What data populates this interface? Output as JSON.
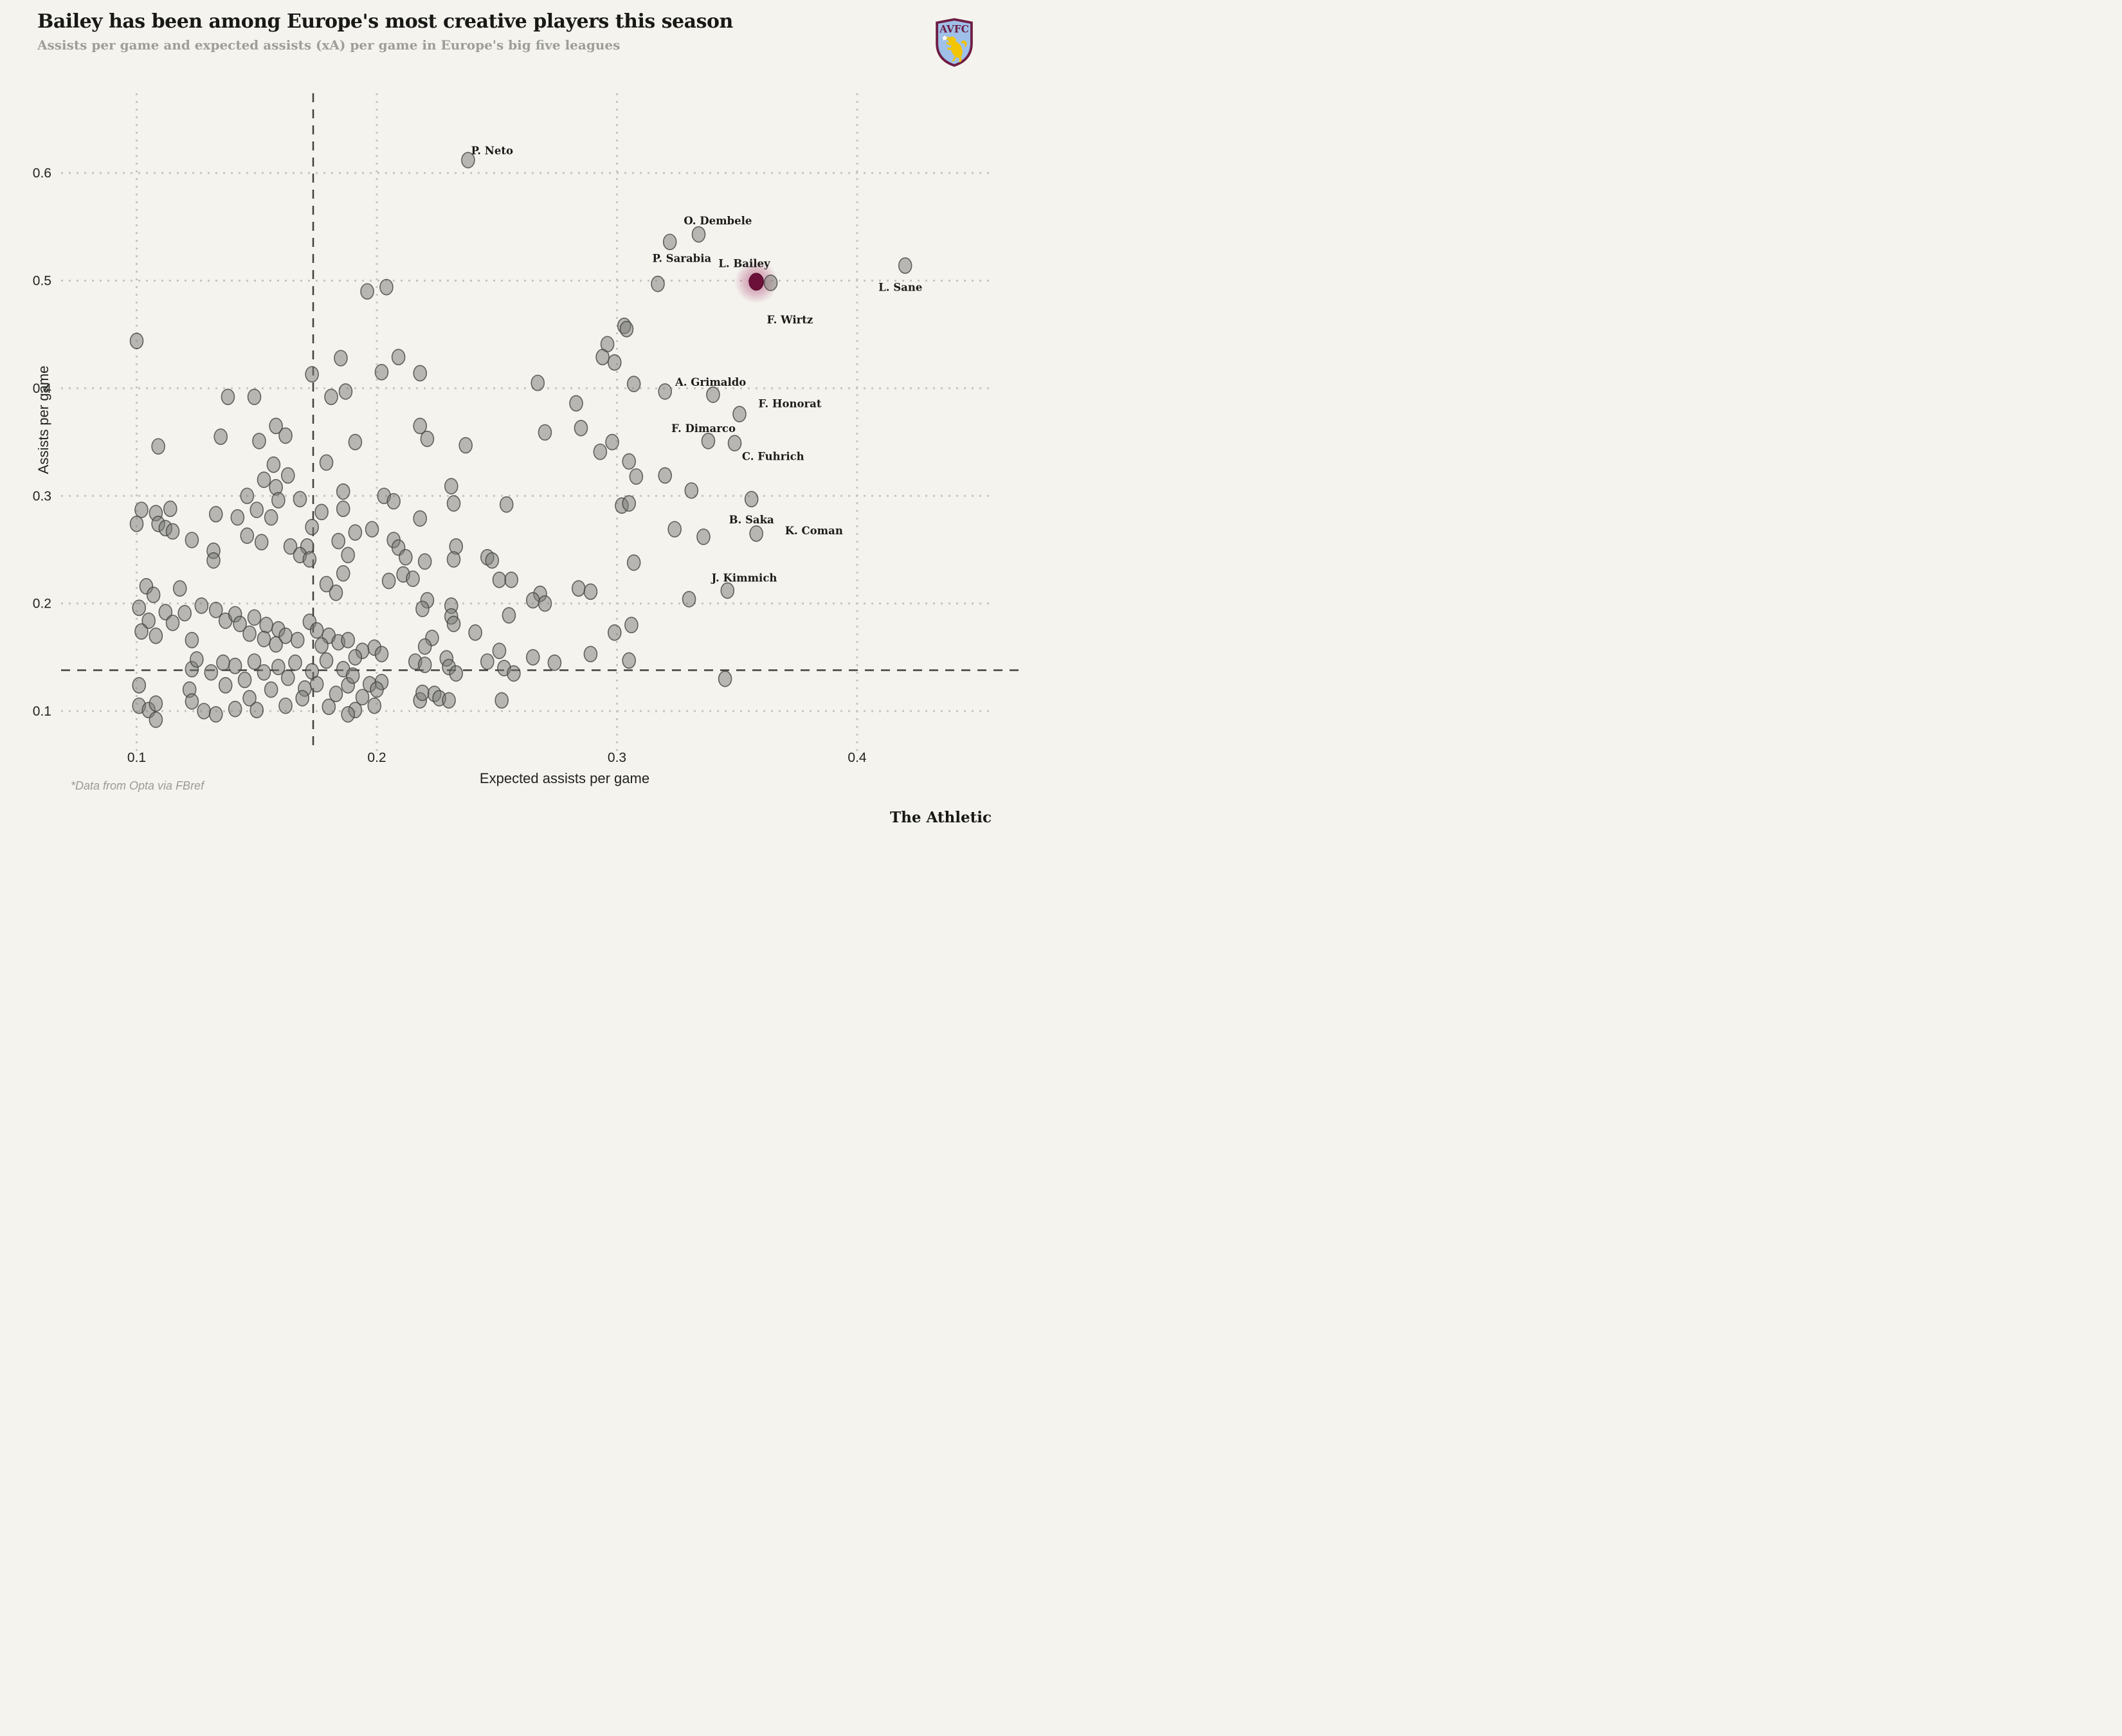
{
  "header": {
    "title": "Bailey has been among Europe's most creative players this season",
    "subtitle": "Assists per game and expected assists (xA) per game in Europe's big five leagues",
    "badge_text": "AVFC"
  },
  "footer": {
    "footnote": "*Data from Opta via FBref",
    "brand": "The Athletic"
  },
  "colors": {
    "background": "#f4f3ee",
    "gridline": "#c6c6c0",
    "reference_line": "#3f3f3d",
    "dot_fill": "rgba(122,122,117,0.5)",
    "dot_stroke": "rgba(66,66,62,0.8)",
    "highlight_core": "#6d1039",
    "highlight_halo": "#a0295f",
    "badge_claret": "#6e1c42",
    "badge_blue": "#9fc0e8",
    "badge_yellow": "#f2c500"
  },
  "chart_data": {
    "type": "scatter",
    "title": "Bailey has been among Europe's most creative players this season",
    "xlabel": "Expected assists per game",
    "ylabel": "Assists per game",
    "x_ticks": [
      0.1,
      0.2,
      0.3,
      0.4
    ],
    "y_ticks": [
      0.1,
      0.2,
      0.3,
      0.4,
      0.5,
      0.6
    ],
    "xlim": [
      0.07,
      0.47
    ],
    "ylim": [
      0.06,
      0.675
    ],
    "grid": "dotted",
    "reference_lines": {
      "x_dashed": 0.1735,
      "y_dashed": 0.138
    },
    "labeled_points": [
      {
        "label": "P. Neto",
        "x": 0.238,
        "y": 0.612,
        "lx": 0.248,
        "ly": 0.621,
        "highlight": false
      },
      {
        "label": "O. Dembele",
        "x": 0.334,
        "y": 0.543,
        "lx": 0.342,
        "ly": 0.556,
        "highlight": false
      },
      {
        "label": "P. Sarabia",
        "x": 0.317,
        "y": 0.497,
        "lx": 0.327,
        "ly": 0.521,
        "highlight": false
      },
      {
        "label": "L. Bailey",
        "x": 0.358,
        "y": 0.499,
        "lx": 0.353,
        "ly": 0.516,
        "highlight": true
      },
      {
        "label": "F. Wirtz",
        "x": 0.364,
        "y": 0.498,
        "lx": 0.372,
        "ly": 0.464,
        "highlight": false
      },
      {
        "label": "L. Sane",
        "x": 0.42,
        "y": 0.514,
        "lx": 0.418,
        "ly": 0.494,
        "highlight": false
      },
      {
        "label": "A. Grimaldo",
        "x": 0.34,
        "y": 0.394,
        "lx": 0.339,
        "ly": 0.406,
        "highlight": false
      },
      {
        "label": "F. Honorat",
        "x": 0.351,
        "y": 0.376,
        "lx": 0.372,
        "ly": 0.386,
        "highlight": false
      },
      {
        "label": "F. Dimarco",
        "x": 0.338,
        "y": 0.351,
        "lx": 0.336,
        "ly": 0.363,
        "highlight": false
      },
      {
        "label": "C. Fuhrich",
        "x": 0.349,
        "y": 0.349,
        "lx": 0.365,
        "ly": 0.337,
        "highlight": false
      },
      {
        "label": "B. Saka",
        "x": 0.356,
        "y": 0.297,
        "lx": 0.356,
        "ly": 0.278,
        "highlight": false
      },
      {
        "label": "K. Coman",
        "x": 0.358,
        "y": 0.265,
        "lx": 0.382,
        "ly": 0.268,
        "highlight": false
      },
      {
        "label": "J. Kimmich",
        "x": 0.346,
        "y": 0.212,
        "lx": 0.353,
        "ly": 0.224,
        "highlight": false
      }
    ],
    "points": [
      [
        0.196,
        0.49
      ],
      [
        0.204,
        0.494
      ],
      [
        0.1,
        0.444
      ],
      [
        0.303,
        0.458
      ],
      [
        0.304,
        0.455
      ],
      [
        0.322,
        0.536
      ],
      [
        0.185,
        0.428
      ],
      [
        0.173,
        0.413
      ],
      [
        0.138,
        0.392
      ],
      [
        0.149,
        0.392
      ],
      [
        0.181,
        0.392
      ],
      [
        0.187,
        0.397
      ],
      [
        0.158,
        0.365
      ],
      [
        0.162,
        0.356
      ],
      [
        0.135,
        0.355
      ],
      [
        0.151,
        0.351
      ],
      [
        0.109,
        0.346
      ],
      [
        0.157,
        0.329
      ],
      [
        0.163,
        0.319
      ],
      [
        0.153,
        0.315
      ],
      [
        0.158,
        0.308
      ],
      [
        0.146,
        0.3
      ],
      [
        0.159,
        0.296
      ],
      [
        0.168,
        0.297
      ],
      [
        0.186,
        0.304
      ],
      [
        0.179,
        0.331
      ],
      [
        0.209,
        0.429
      ],
      [
        0.202,
        0.415
      ],
      [
        0.218,
        0.414
      ],
      [
        0.267,
        0.405
      ],
      [
        0.296,
        0.441
      ],
      [
        0.294,
        0.429
      ],
      [
        0.299,
        0.424
      ],
      [
        0.307,
        0.404
      ],
      [
        0.32,
        0.397
      ],
      [
        0.283,
        0.386
      ],
      [
        0.285,
        0.363
      ],
      [
        0.218,
        0.365
      ],
      [
        0.221,
        0.353
      ],
      [
        0.237,
        0.347
      ],
      [
        0.27,
        0.359
      ],
      [
        0.191,
        0.35
      ],
      [
        0.298,
        0.35
      ],
      [
        0.293,
        0.341
      ],
      [
        0.305,
        0.332
      ],
      [
        0.308,
        0.318
      ],
      [
        0.32,
        0.319
      ],
      [
        0.231,
        0.309
      ],
      [
        0.203,
        0.3
      ],
      [
        0.207,
        0.295
      ],
      [
        0.232,
        0.293
      ],
      [
        0.254,
        0.292
      ],
      [
        0.331,
        0.305
      ],
      [
        0.102,
        0.287
      ],
      [
        0.108,
        0.284
      ],
      [
        0.114,
        0.288
      ],
      [
        0.1,
        0.274
      ],
      [
        0.109,
        0.274
      ],
      [
        0.112,
        0.27
      ],
      [
        0.115,
        0.267
      ],
      [
        0.123,
        0.259
      ],
      [
        0.133,
        0.283
      ],
      [
        0.142,
        0.28
      ],
      [
        0.15,
        0.287
      ],
      [
        0.156,
        0.28
      ],
      [
        0.146,
        0.263
      ],
      [
        0.152,
        0.257
      ],
      [
        0.132,
        0.249
      ],
      [
        0.132,
        0.24
      ],
      [
        0.164,
        0.253
      ],
      [
        0.171,
        0.253
      ],
      [
        0.168,
        0.245
      ],
      [
        0.172,
        0.241
      ],
      [
        0.184,
        0.258
      ],
      [
        0.173,
        0.271
      ],
      [
        0.177,
        0.285
      ],
      [
        0.186,
        0.288
      ],
      [
        0.118,
        0.214
      ],
      [
        0.104,
        0.216
      ],
      [
        0.107,
        0.208
      ],
      [
        0.127,
        0.198
      ],
      [
        0.133,
        0.194
      ],
      [
        0.137,
        0.184
      ],
      [
        0.141,
        0.19
      ],
      [
        0.143,
        0.181
      ],
      [
        0.149,
        0.187
      ],
      [
        0.154,
        0.18
      ],
      [
        0.159,
        0.176
      ],
      [
        0.147,
        0.172
      ],
      [
        0.153,
        0.167
      ],
      [
        0.158,
        0.162
      ],
      [
        0.162,
        0.17
      ],
      [
        0.167,
        0.166
      ],
      [
        0.12,
        0.191
      ],
      [
        0.112,
        0.192
      ],
      [
        0.115,
        0.182
      ],
      [
        0.105,
        0.184
      ],
      [
        0.102,
        0.174
      ],
      [
        0.108,
        0.17
      ],
      [
        0.172,
        0.183
      ],
      [
        0.175,
        0.175
      ],
      [
        0.18,
        0.17
      ],
      [
        0.184,
        0.164
      ],
      [
        0.177,
        0.161
      ],
      [
        0.183,
        0.21
      ],
      [
        0.179,
        0.218
      ],
      [
        0.186,
        0.228
      ],
      [
        0.101,
        0.196
      ],
      [
        0.123,
        0.166
      ],
      [
        0.302,
        0.291
      ],
      [
        0.218,
        0.279
      ],
      [
        0.198,
        0.269
      ],
      [
        0.191,
        0.266
      ],
      [
        0.188,
        0.245
      ],
      [
        0.207,
        0.259
      ],
      [
        0.209,
        0.252
      ],
      [
        0.212,
        0.243
      ],
      [
        0.22,
        0.239
      ],
      [
        0.233,
        0.253
      ],
      [
        0.232,
        0.241
      ],
      [
        0.246,
        0.243
      ],
      [
        0.248,
        0.24
      ],
      [
        0.211,
        0.227
      ],
      [
        0.205,
        0.221
      ],
      [
        0.215,
        0.223
      ],
      [
        0.251,
        0.222
      ],
      [
        0.256,
        0.222
      ],
      [
        0.268,
        0.209
      ],
      [
        0.265,
        0.203
      ],
      [
        0.27,
        0.2
      ],
      [
        0.284,
        0.214
      ],
      [
        0.289,
        0.211
      ],
      [
        0.221,
        0.203
      ],
      [
        0.219,
        0.195
      ],
      [
        0.231,
        0.198
      ],
      [
        0.231,
        0.188
      ],
      [
        0.232,
        0.181
      ],
      [
        0.255,
        0.189
      ],
      [
        0.241,
        0.173
      ],
      [
        0.223,
        0.168
      ],
      [
        0.22,
        0.16
      ],
      [
        0.199,
        0.159
      ],
      [
        0.194,
        0.156
      ],
      [
        0.202,
        0.153
      ],
      [
        0.191,
        0.15
      ],
      [
        0.188,
        0.166
      ],
      [
        0.229,
        0.149
      ],
      [
        0.251,
        0.156
      ],
      [
        0.265,
        0.15
      ],
      [
        0.246,
        0.146
      ],
      [
        0.274,
        0.145
      ],
      [
        0.299,
        0.173
      ],
      [
        0.305,
        0.293
      ],
      [
        0.307,
        0.238
      ],
      [
        0.289,
        0.153
      ],
      [
        0.123,
        0.139
      ],
      [
        0.141,
        0.142
      ],
      [
        0.159,
        0.141
      ],
      [
        0.131,
        0.136
      ],
      [
        0.136,
        0.145
      ],
      [
        0.149,
        0.146
      ],
      [
        0.166,
        0.145
      ],
      [
        0.153,
        0.136
      ],
      [
        0.163,
        0.131
      ],
      [
        0.173,
        0.137
      ],
      [
        0.179,
        0.147
      ],
      [
        0.186,
        0.139
      ],
      [
        0.101,
        0.124
      ],
      [
        0.101,
        0.105
      ],
      [
        0.105,
        0.101
      ],
      [
        0.108,
        0.107
      ],
      [
        0.108,
        0.092
      ],
      [
        0.122,
        0.12
      ],
      [
        0.123,
        0.109
      ],
      [
        0.128,
        0.1
      ],
      [
        0.133,
        0.097
      ],
      [
        0.141,
        0.102
      ],
      [
        0.147,
        0.112
      ],
      [
        0.15,
        0.101
      ],
      [
        0.137,
        0.124
      ],
      [
        0.145,
        0.129
      ],
      [
        0.156,
        0.12
      ],
      [
        0.17,
        0.121
      ],
      [
        0.169,
        0.112
      ],
      [
        0.162,
        0.105
      ],
      [
        0.188,
        0.124
      ],
      [
        0.183,
        0.116
      ],
      [
        0.18,
        0.104
      ],
      [
        0.175,
        0.125
      ],
      [
        0.125,
        0.148
      ],
      [
        0.19,
        0.133
      ],
      [
        0.197,
        0.125
      ],
      [
        0.202,
        0.127
      ],
      [
        0.2,
        0.12
      ],
      [
        0.194,
        0.113
      ],
      [
        0.199,
        0.105
      ],
      [
        0.191,
        0.101
      ],
      [
        0.188,
        0.097
      ],
      [
        0.218,
        0.11
      ],
      [
        0.216,
        0.146
      ],
      [
        0.22,
        0.143
      ],
      [
        0.23,
        0.141
      ],
      [
        0.233,
        0.135
      ],
      [
        0.253,
        0.14
      ],
      [
        0.257,
        0.135
      ],
      [
        0.219,
        0.117
      ],
      [
        0.224,
        0.116
      ],
      [
        0.226,
        0.112
      ],
      [
        0.23,
        0.11
      ],
      [
        0.252,
        0.11
      ],
      [
        0.305,
        0.147
      ],
      [
        0.33,
        0.204
      ],
      [
        0.306,
        0.18
      ],
      [
        0.345,
        0.13
      ],
      [
        0.324,
        0.269
      ],
      [
        0.336,
        0.262
      ]
    ]
  }
}
